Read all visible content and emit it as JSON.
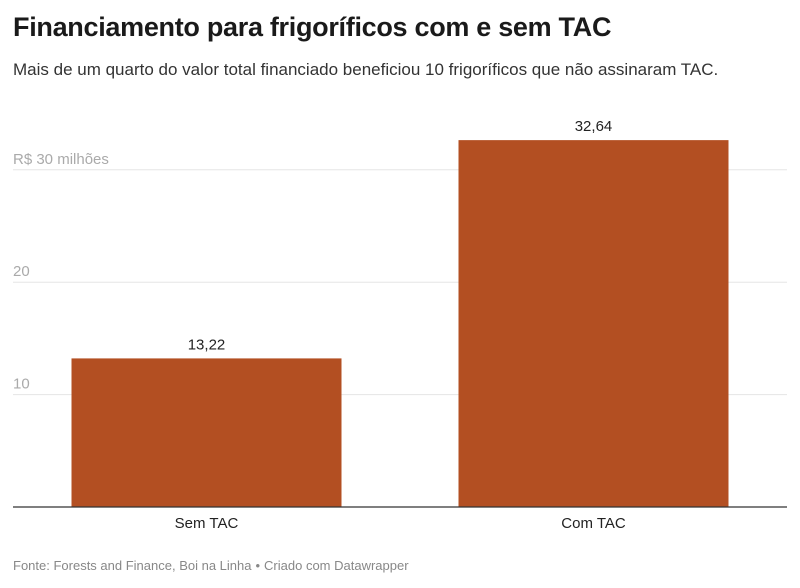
{
  "title": "Financiamento para frigoríficos com e sem TAC",
  "subtitle": "Mais de um quarto do valor total financiado beneficiou 10 frigoríficos que não assinaram TAC.",
  "footer": {
    "source": "Fonte: Forests and Finance, Boi na Linha",
    "separator": "•",
    "credit": "Criado com Datawrapper"
  },
  "colors": {
    "bar": "#b34f22",
    "grid": "#e5e5e5",
    "axis": "#333333",
    "tick_label": "#aaaaaa"
  },
  "chart_data": {
    "type": "bar",
    "title": "Financiamento para frigoríficos com e sem TAC",
    "categories": [
      "Sem TAC",
      "Com TAC"
    ],
    "values": [
      13.22,
      32.64
    ],
    "value_labels": [
      "13,22",
      "32,64"
    ],
    "ylim": [
      0,
      30
    ],
    "yticks": [
      10,
      20,
      30
    ],
    "ytick_labels": [
      "10",
      "20",
      "R$ 30 milhões"
    ],
    "xlabel": "",
    "ylabel": "",
    "grid": true,
    "legend": "none"
  }
}
